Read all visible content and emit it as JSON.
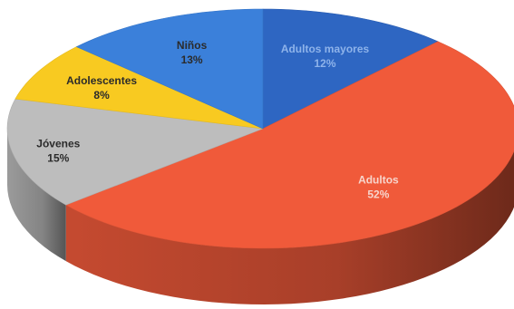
{
  "chart_data": {
    "type": "pie",
    "title": "",
    "slices": [
      {
        "label": "Adultos mayores",
        "value": 12,
        "value_text": "12%",
        "color": "#2E66C2",
        "label_color": "#8EB3EA"
      },
      {
        "label": "Adultos",
        "value": 52,
        "value_text": "52%",
        "color": "#F05A3A",
        "label_color": "#F7D5CC"
      },
      {
        "label": "Jóvenes",
        "value": 15,
        "value_text": "15%",
        "color": "#BDBDBD",
        "label_color": "#2B2B2B"
      },
      {
        "label": "Adolescentes",
        "value": 8,
        "value_text": "8%",
        "color": "#F8CA21",
        "label_color": "#2B2B2B"
      },
      {
        "label": "Niños",
        "value": 13,
        "value_text": "13%",
        "color": "#3B80DA",
        "label_color": "#2B2B2B"
      }
    ],
    "style": "3d-tilted",
    "legend": "none"
  }
}
